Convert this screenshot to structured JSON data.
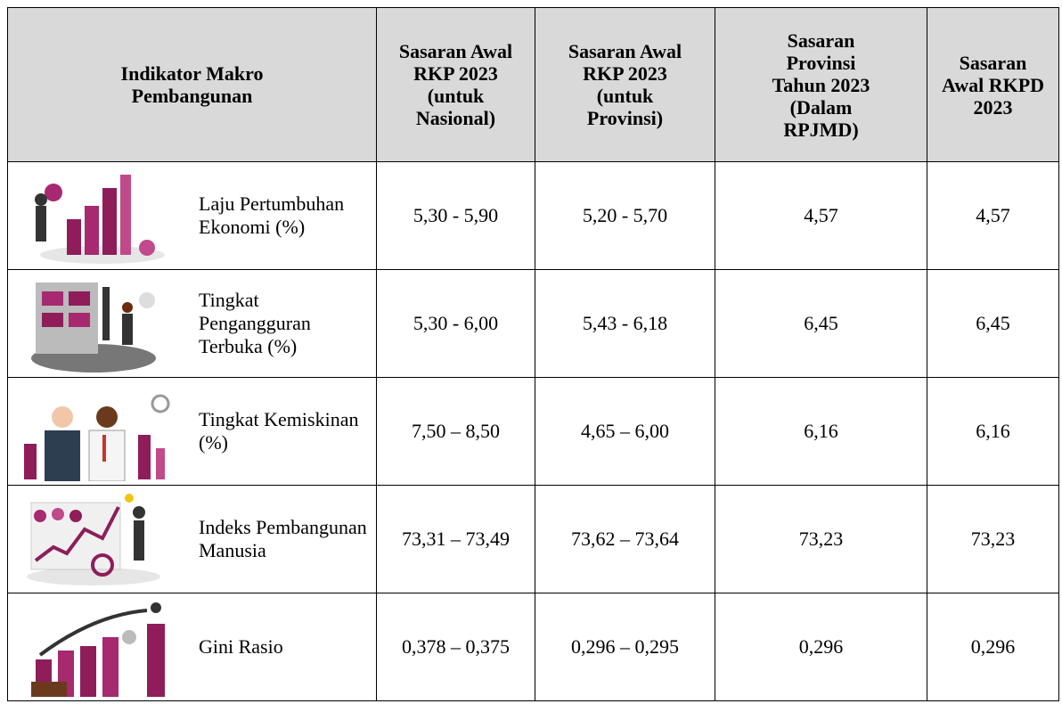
{
  "table": {
    "header": [
      "Indikator Makro Pembangunan",
      "Sasaran Awal RKP 2023 (untuk Nasional)",
      "Sasaran Awal RKP 2023 (untuk Provinsi)",
      "Sasaran Provinsi Tahun 2023 (Dalam RPJMD)",
      "Sasaran Awal RKPD 2023"
    ],
    "rows": [
      [
        "Laju Pertumbuhan Ekonomi (%)",
        "5,30 - 5,90",
        "5,20 - 5,70",
        "4,57",
        "4,57"
      ],
      [
        "Tingkat Pengangguran Terbuka (%)",
        "5,30 - 6,00",
        "5,43 - 6,18",
        "6,45",
        "6,45"
      ],
      [
        "Tingkat Kemiskinan (%)",
        "7,50 – 8,50",
        "4,65 – 6,00",
        "6,16",
        "6,16"
      ],
      [
        "Indeks Pembangunan Manusia",
        "73,31 – 73,49",
        "73,62 – 73,64",
        "73,23",
        "73,23"
      ],
      [
        "Gini Rasio",
        "0,378 – 0,375",
        "0,296 – 0,295",
        "0,296",
        "0,296"
      ]
    ]
  }
}
